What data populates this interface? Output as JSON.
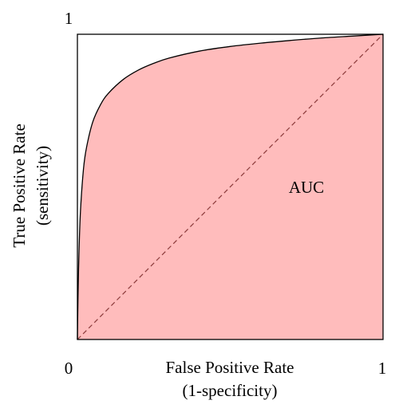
{
  "chart_data": {
    "type": "area",
    "title": "",
    "xlabel": "False Positive Rate",
    "xlabel_sub": "(1-specificity)",
    "ylabel": "True Positive Rate",
    "ylabel_sub": "(sensitivity)",
    "xlim": [
      0,
      1
    ],
    "ylim": [
      0,
      1
    ],
    "x_tick_labels": [
      "0",
      "1"
    ],
    "y_tick_labels": [
      "1"
    ],
    "grid": false,
    "legend": "none",
    "annotation": "AUC",
    "fill_color": "#ffbcbc",
    "series": [
      {
        "name": "",
        "style": "solid",
        "filled": true,
        "x": [
          0,
          0.002,
          0.005,
          0.01,
          0.02,
          0.03,
          0.05,
          0.075,
          0.1,
          0.15,
          0.2,
          0.25,
          0.3,
          0.4,
          0.5,
          0.6,
          0.7,
          0.8,
          0.9,
          1
        ],
        "y": [
          0,
          0.14,
          0.28,
          0.42,
          0.56,
          0.63,
          0.712,
          0.768,
          0.805,
          0.852,
          0.883,
          0.905,
          0.922,
          0.945,
          0.96,
          0.971,
          0.98,
          0.988,
          0.994,
          1
        ]
      },
      {
        "name": "",
        "style": "dashed",
        "filled": false,
        "x": [
          0,
          1
        ],
        "y": [
          0,
          1
        ]
      }
    ]
  }
}
